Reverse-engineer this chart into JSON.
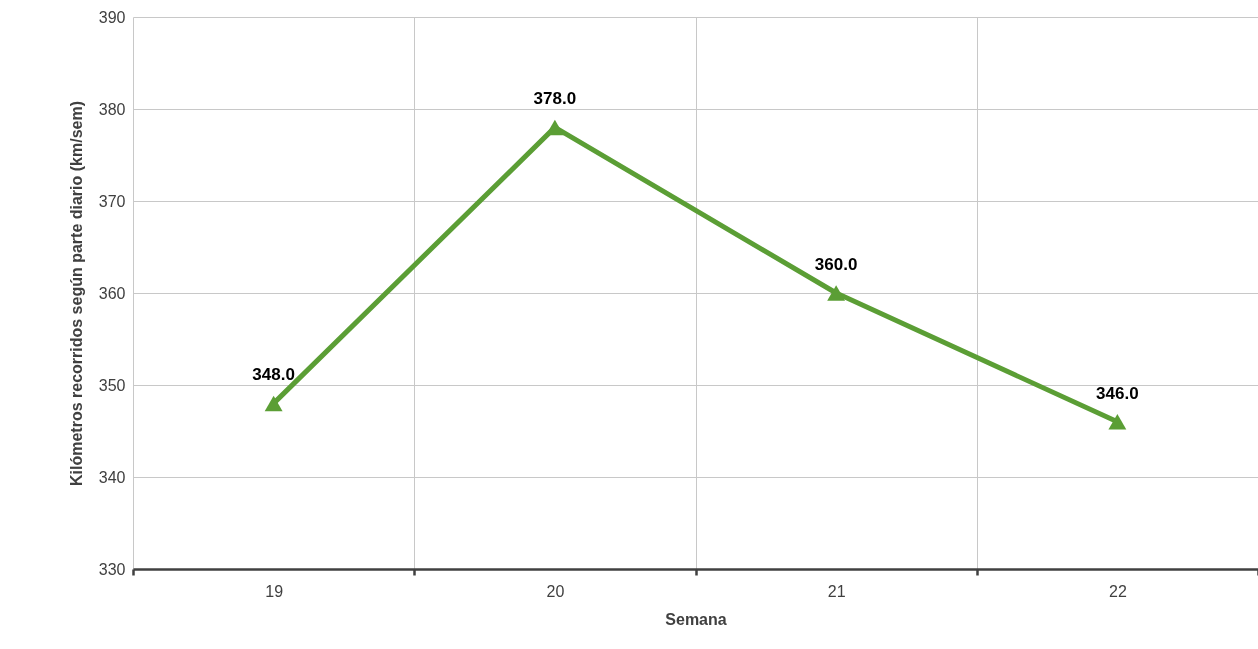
{
  "chart_data": {
    "type": "line",
    "xlabel": "Semana",
    "ylabel": "Kilómetros recorridos según parte diario (km/sem)",
    "categories": [
      "19",
      "20",
      "21",
      "22"
    ],
    "series": [
      {
        "color": "#5b9e35",
        "values": [
          348,
          378,
          360,
          346
        ],
        "value_labels": [
          "348.0",
          "378.0",
          "360.0",
          "346.0"
        ]
      }
    ],
    "ylim": [
      330,
      390
    ],
    "yticks": [
      330,
      340,
      350,
      360,
      370,
      380,
      390
    ],
    "grid": true,
    "marker": "triangle",
    "line_style": "solid"
  }
}
